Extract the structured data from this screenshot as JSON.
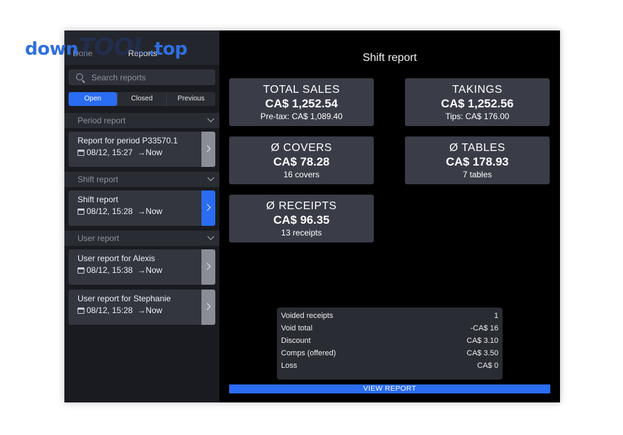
{
  "watermark": {
    "part1": "down",
    "part2": "TOOL",
    "part3": ".top"
  },
  "topbar": {
    "done_label": "Done",
    "title": "Reports"
  },
  "search": {
    "placeholder": "Search reports"
  },
  "filters": [
    {
      "label": "Open",
      "active": true
    },
    {
      "label": "Closed",
      "active": false
    },
    {
      "label": "Previous",
      "active": false
    }
  ],
  "sections": {
    "period": {
      "header": "Period report",
      "items": [
        {
          "title": "Report for period P33570.1",
          "date": "08/12, 15:27",
          "end": "→Now"
        }
      ]
    },
    "shift": {
      "header": "Shift report",
      "items": [
        {
          "title": "Shift report",
          "date": "08/12, 15:28",
          "end": "→Now"
        }
      ]
    },
    "user": {
      "header": "User report",
      "items": [
        {
          "title": "User report for Alexis",
          "date": "08/12, 15:38",
          "end": "→Now"
        },
        {
          "title": "User report for Stephanie",
          "date": "08/12, 15:28",
          "end": "→Now"
        }
      ]
    }
  },
  "main": {
    "title": "Shift report",
    "tiles": {
      "total_sales": {
        "label": "TOTAL SALES",
        "value": "CA$ 1,252.54",
        "sub": "Pre-tax: CA$ 1,089.40"
      },
      "takings": {
        "label": "TAKINGS",
        "value": "CA$ 1,252.56",
        "sub": "Tips: CA$ 176.00"
      },
      "covers": {
        "label": "Ø COVERS",
        "value": "CA$ 78.28",
        "sub": "16 covers"
      },
      "tables": {
        "label": "Ø TABLES",
        "value": "CA$ 178.93",
        "sub": "7 tables"
      },
      "receipts": {
        "label": "Ø RECEIPTS",
        "value": "CA$ 96.35",
        "sub": "13 receipts"
      }
    },
    "summary": [
      {
        "label": "Voided receipts",
        "value": "1"
      },
      {
        "label": "Void total",
        "value": "-CA$ 16"
      },
      {
        "label": "Discount",
        "value": "CA$ 3.10"
      },
      {
        "label": "Comps (offered)",
        "value": "CA$ 3.50"
      },
      {
        "label": "Loss",
        "value": "CA$ 0"
      }
    ],
    "view_report_label": "VIEW REPORT"
  },
  "colors": {
    "accent": "#2a6cf2",
    "background": "#000000",
    "tile": "#3a3d47"
  },
  "icons": [
    "search-icon",
    "chevron-down-icon",
    "calendar-icon",
    "chevron-right-icon"
  ]
}
